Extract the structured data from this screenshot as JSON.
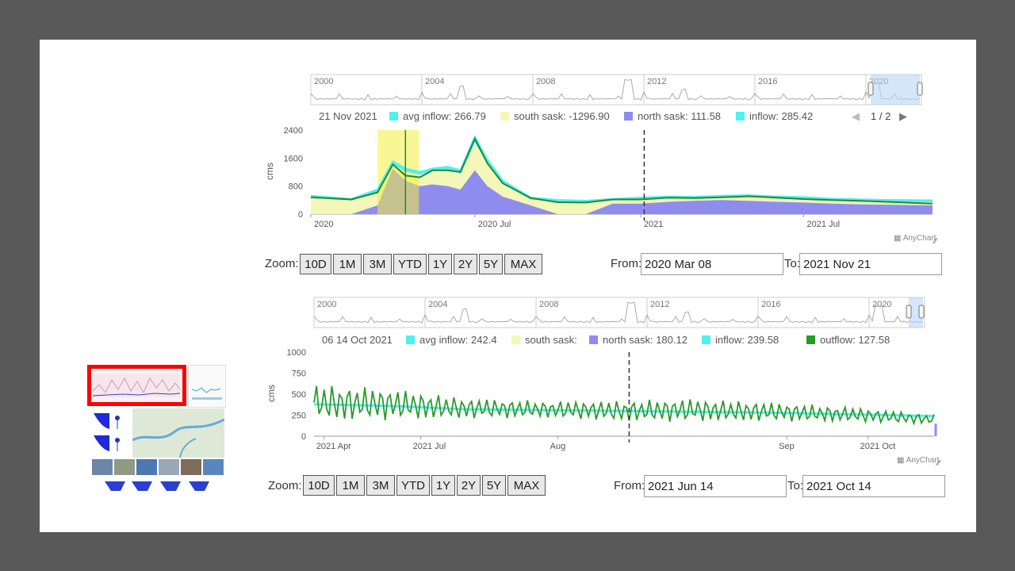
{
  "chart1": {
    "legend": {
      "date": "21 Nov 2021",
      "items": [
        {
          "label": "avg inflow: 266.79",
          "color": "#4ef1ee"
        },
        {
          "label": "south sask: -1296.90",
          "color": "#f4f7b8"
        },
        {
          "label": "north sask: 111.58",
          "color": "#8f8cf0"
        },
        {
          "label": "inflow: 285.42",
          "color": "#4ef1ee"
        }
      ],
      "page": "1 / 2"
    },
    "navigator_years": [
      "2000",
      "2004",
      "2008",
      "2012",
      "2016",
      "2020"
    ],
    "credit": "AnyChart",
    "zoom_label": "Zoom:",
    "zoom_buttons": [
      "10D",
      "1M",
      "3M",
      "YTD",
      "1Y",
      "2Y",
      "5Y",
      "MAX"
    ],
    "from_label": "From:",
    "from_value": "2020 Mar 08",
    "to_label": "To:",
    "to_value": "2021 Nov 21"
  },
  "chart2": {
    "legend": {
      "date": "06 14 Oct 2021",
      "items": [
        {
          "label": "avg inflow: 242.4",
          "color": "#4ef1ee"
        },
        {
          "label": "south sask:",
          "color": "#f4f7b8"
        },
        {
          "label": "north sask: 180.12",
          "color": "#8f8cf0"
        },
        {
          "label": "inflow: 239.58",
          "color": "#4ef1ee"
        },
        {
          "label": "outflow: 127.58",
          "color": "#2a9a2a"
        }
      ]
    },
    "navigator_years": [
      "2000",
      "2004",
      "2008",
      "2012",
      "2016",
      "2020"
    ],
    "credit": "AnyChart",
    "zoom_label": "Zoom:",
    "zoom_buttons": [
      "10D",
      "1M",
      "3M",
      "YTD",
      "1Y",
      "2Y",
      "5Y",
      "MAX"
    ],
    "from_label": "From:",
    "from_value": "2021 Jun 14",
    "to_label": "To:",
    "to_value": "2021 Oct 14"
  },
  "chart_data": [
    {
      "type": "area",
      "title": "",
      "xlabel": "",
      "ylabel": "cms",
      "x_ticks": [
        "2020",
        "2020 Jul",
        "2021",
        "2021 Jul"
      ],
      "y_ticks": [
        0,
        800,
        1600,
        2400
      ],
      "ylim": [
        0,
        2400
      ],
      "xlim": [
        "2020-01-01",
        "2021-11-21"
      ],
      "grid": false,
      "x": [
        "2020-01-01",
        "2020-02-15",
        "2020-03-15",
        "2020-04-01",
        "2020-04-15",
        "2020-05-01",
        "2020-05-15",
        "2020-06-01",
        "2020-06-15",
        "2020-07-01",
        "2020-07-15",
        "2020-08-01",
        "2020-09-01",
        "2020-10-01",
        "2020-11-01",
        "2020-12-01",
        "2021-01-01",
        "2021-02-01",
        "2021-03-01",
        "2021-04-01",
        "2021-05-01",
        "2021-06-01",
        "2021-07-01",
        "2021-08-01",
        "2021-09-01",
        "2021-10-01",
        "2021-11-21"
      ],
      "series": [
        {
          "name": "avg inflow",
          "color": "#4ef1ee",
          "kind": "line",
          "values": [
            500,
            420,
            650,
            1450,
            1250,
            1150,
            1250,
            1300,
            1200,
            2100,
            1500,
            900,
            450,
            380,
            360,
            420,
            450,
            480,
            470,
            500,
            520,
            480,
            460,
            420,
            400,
            380,
            370
          ]
        },
        {
          "name": "south sask",
          "color": "#f4f7b8",
          "kind": "area",
          "values": [
            480,
            400,
            600,
            1400,
            1200,
            1100,
            1200,
            1250,
            1150,
            2000,
            1450,
            850,
            430,
            350,
            330,
            400,
            430,
            470,
            450,
            480,
            500,
            470,
            450,
            400,
            380,
            350,
            330
          ]
        },
        {
          "name": "north sask",
          "color": "#8f8cf0",
          "kind": "area",
          "values": [
            0,
            0,
            250,
            1300,
            950,
            800,
            850,
            800,
            700,
            1250,
            800,
            500,
            250,
            0,
            0,
            300,
            300,
            350,
            380,
            400,
            380,
            350,
            330,
            300,
            280,
            270,
            250
          ]
        },
        {
          "name": "inflow",
          "color": "#4ef1ee",
          "kind": "line",
          "values": [
            520,
            430,
            700,
            1500,
            1300,
            1200,
            1300,
            1350,
            1250,
            2200,
            1550,
            950,
            470,
            400,
            380,
            430,
            470,
            500,
            490,
            520,
            540,
            500,
            480,
            440,
            420,
            400,
            390
          ]
        },
        {
          "name": "outflow",
          "color": "#1d8a3a",
          "kind": "line",
          "values": [
            480,
            420,
            620,
            1420,
            1100,
            1050,
            1250,
            1250,
            1200,
            2150,
            1450,
            880,
            460,
            340,
            330,
            420,
            420,
            470,
            460,
            480,
            510,
            470,
            430,
            400,
            380,
            350,
            300
          ]
        }
      ],
      "highlight_band": {
        "from": "2020-03-15",
        "to": "2020-04-30"
      },
      "cursor_x": "2021-01-05"
    },
    {
      "type": "line",
      "title": "",
      "xlabel": "",
      "ylabel": "cms",
      "x_ticks": [
        "2021 Apr",
        "2021 Jul",
        "Aug",
        "Sep",
        "2021 Oct"
      ],
      "y_ticks": [
        0,
        250,
        500,
        750,
        1000
      ],
      "ylim": [
        0,
        1000
      ],
      "xlim": [
        "2021-06-14",
        "2021-10-14"
      ],
      "grid": false,
      "series": [
        {
          "name": "inflow",
          "color": "#4ef1ee",
          "x": [
            "2021-06-14",
            "2021-06-29",
            "2021-07-14",
            "2021-07-29",
            "2021-08-13",
            "2021-08-28",
            "2021-09-12",
            "2021-09-27",
            "2021-10-14"
          ],
          "values": [
            380,
            360,
            320,
            310,
            300,
            290,
            280,
            260,
            240
          ]
        },
        {
          "name": "outflow",
          "color": "#2a9a2a",
          "oscillating": true,
          "x": [
            "2021-06-14",
            "2021-06-29",
            "2021-07-14",
            "2021-07-29",
            "2021-08-13",
            "2021-08-28",
            "2021-09-12",
            "2021-09-27",
            "2021-10-14"
          ],
          "amplitude": [
            450,
            380,
            250,
            200,
            250,
            280,
            230,
            180,
            120
          ],
          "values": [
            400,
            380,
            330,
            320,
            300,
            310,
            290,
            260,
            200
          ]
        }
      ],
      "cursor_x": "2021-08-15"
    }
  ],
  "thumbnail": {
    "selected_color": "#ff0000"
  }
}
